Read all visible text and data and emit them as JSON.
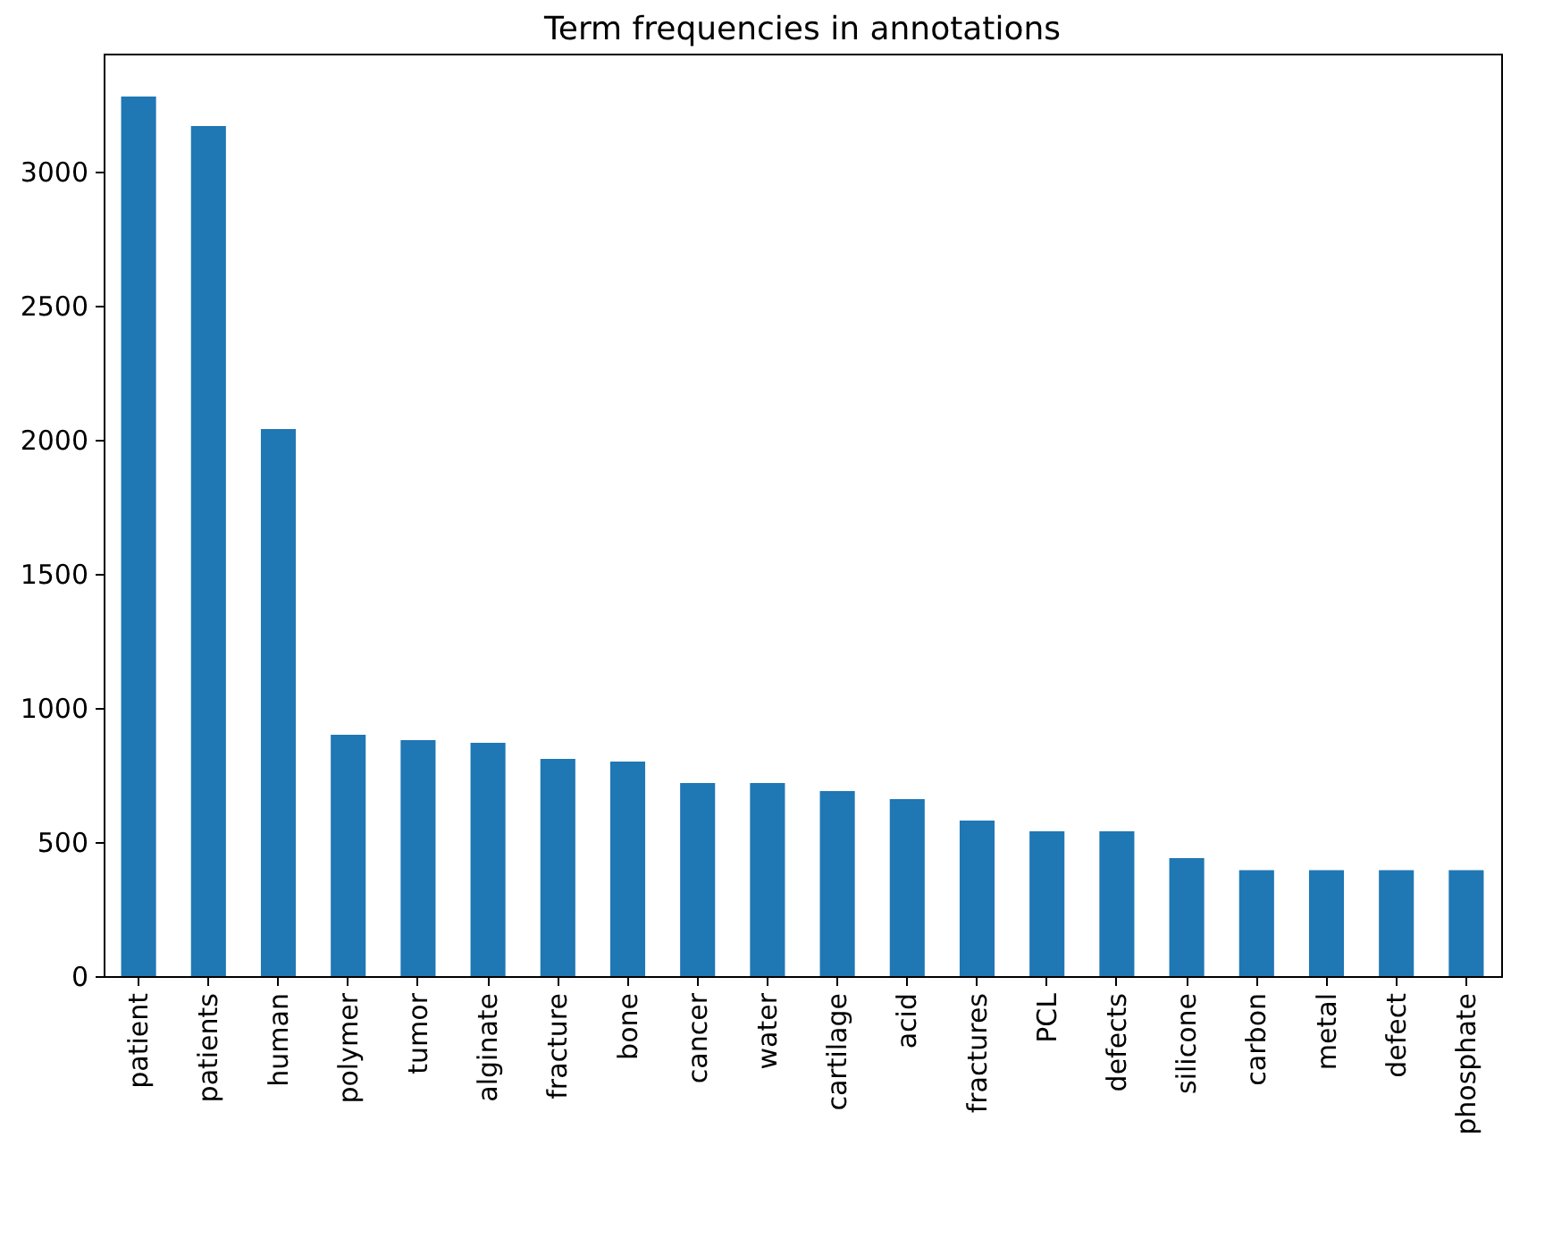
{
  "chart_data": {
    "type": "bar",
    "title": "Term frequencies in annotations",
    "categories": [
      "patient",
      "patients",
      "human",
      "polymer",
      "tumor",
      "alginate",
      "fracture",
      "bone",
      "cancer",
      "water",
      "cartilage",
      "acid",
      "fractures",
      "PCL",
      "defects",
      "silicone",
      "carbon",
      "metal",
      "defect",
      "phosphate"
    ],
    "values": [
      3280,
      3170,
      2040,
      900,
      880,
      870,
      810,
      800,
      720,
      720,
      690,
      660,
      580,
      540,
      540,
      440,
      395,
      395,
      395,
      395
    ],
    "color": "#1f77b4",
    "ylim": [
      0,
      3440
    ],
    "yticks": [
      0,
      500,
      1000,
      1500,
      2000,
      2500,
      3000
    ],
    "grid": false
  }
}
